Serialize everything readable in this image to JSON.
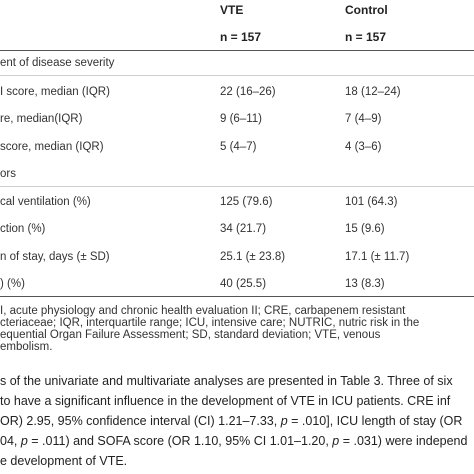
{
  "table": {
    "columns": [
      {
        "label": "VTE",
        "n": "n = 157"
      },
      {
        "label": "Control",
        "n": "n = 157"
      }
    ],
    "sections": [
      {
        "title": "ent of disease severity"
      },
      {
        "title": "ors"
      }
    ],
    "rows": [
      {
        "label": "I score, median (IQR)",
        "vte": "22 (16–26)",
        "control": "18 (12–24)"
      },
      {
        "label": "re, median(IQR)",
        "vte": "9 (6–11)",
        "control": "7 (4–9)"
      },
      {
        "label": "score, median (IQR)",
        "vte": "5 (4–7)",
        "control": "4 (3–6)"
      },
      {
        "label": "cal ventilation (%)",
        "vte": "125 (79.6)",
        "control": "101 (64.3)"
      },
      {
        "label": "ction (%)",
        "vte": "34 (21.7)",
        "control": "15 (9.6)"
      },
      {
        "label": "n of stay, days (± SD)",
        "vte": "25.1 (± 23.8)",
        "control": "17.1 (± 11.7)"
      },
      {
        "label": ") (%)",
        "vte": "40 (25.5)",
        "control": "13 (8.3)"
      }
    ],
    "footnote": [
      "I, acute physiology and chronic health evaluation II; CRE, carbapenem resistant",
      "cteriaceae; IQR, interquartile range; ICU, intensive care; NUTRIC, nutric risk in the",
      "equential Organ Failure Assessment; SD, standard deviation; VTE, venous",
      "embolism."
    ]
  },
  "paragraph": {
    "l1": "s of the univariate and multivariate analyses are presented in Table 3. Three of six",
    "l2": "to have a significant influence in the development of VTE in ICU patients. CRE inf",
    "l3a": "OR) 2.95, 95% confidence interval (CI) 1.21–7.33, ",
    "l3p": "p",
    "l3b": " = .010], ICU length of stay (OR",
    "l4a": "04, ",
    "l4p": "p",
    "l4b": " = .011) and SOFA score (OR 1.10, 95% CI 1.01–1.20, ",
    "l4p2": "p",
    "l4c": " = .031) were independ",
    "l5": "e development of VTE."
  }
}
